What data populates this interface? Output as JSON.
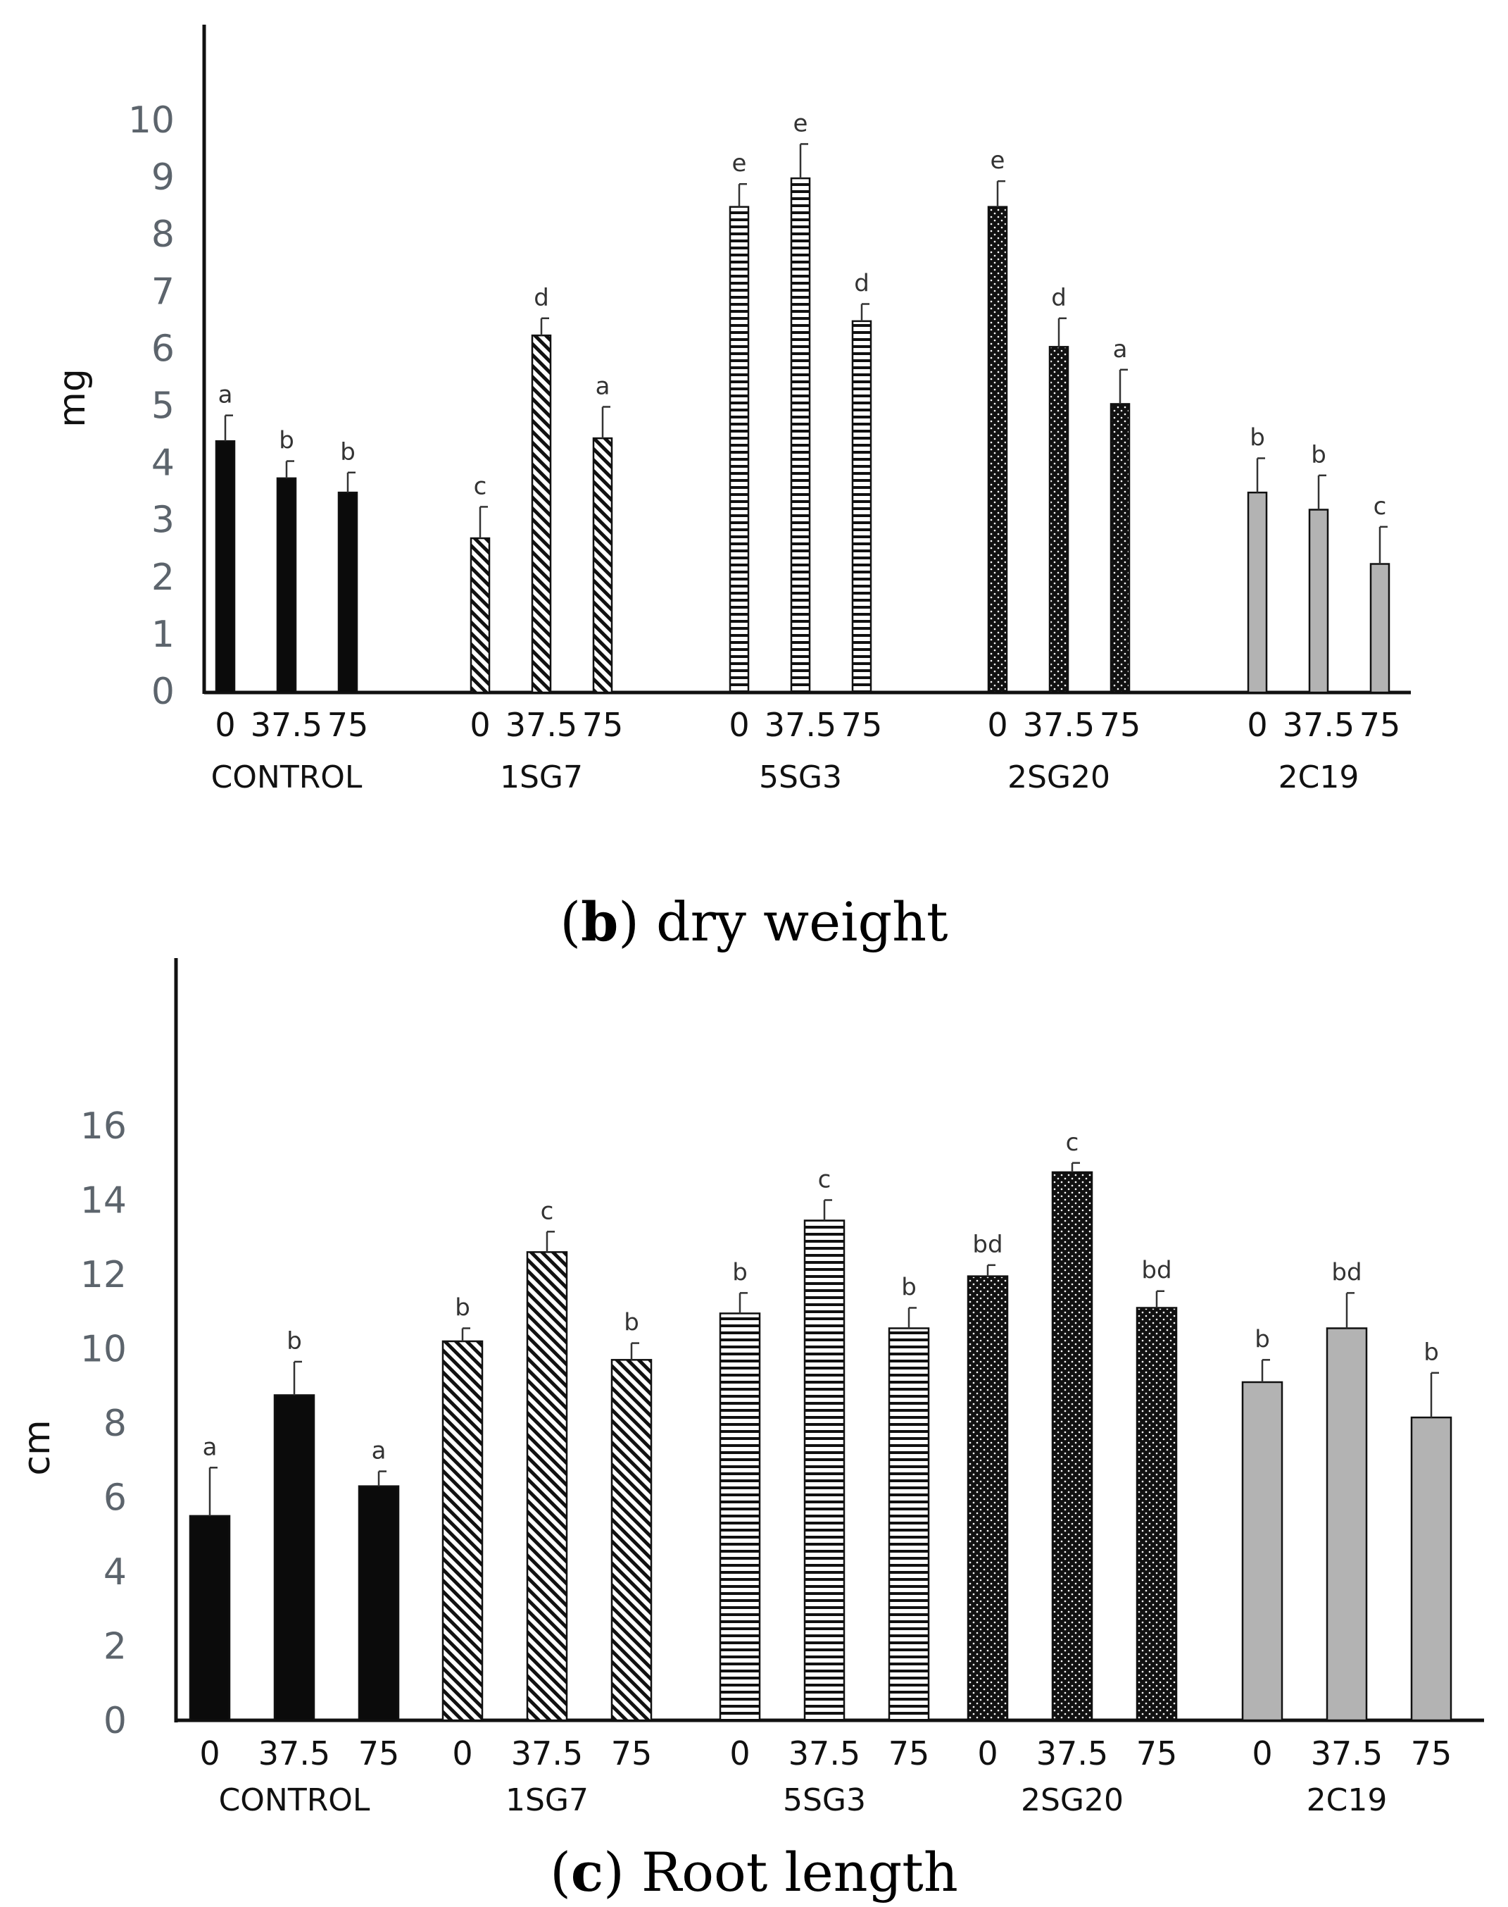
{
  "chart_data": [
    {
      "type": "bar",
      "caption_letter": "b",
      "caption_text": ") dry weight",
      "ylabel": "mg",
      "ylim": [
        0,
        10
      ],
      "yticks": [
        "0",
        "1",
        "2",
        "3",
        "4",
        "5",
        "6",
        "7",
        "8",
        "9",
        "10"
      ],
      "x_tick_labels": [
        "0",
        "37.5",
        "75"
      ],
      "groups": [
        {
          "name": "CONTROL",
          "pattern": "solid",
          "values": [
            4.4,
            3.75,
            3.5
          ],
          "errors": [
            0.45,
            0.3,
            0.35
          ],
          "letters": [
            "a",
            "b",
            "b"
          ]
        },
        {
          "name": "1SG7",
          "pattern": "diagonal",
          "values": [
            2.7,
            6.25,
            4.45
          ],
          "errors": [
            0.55,
            0.3,
            0.55
          ],
          "letters": [
            "c",
            "d",
            "a"
          ]
        },
        {
          "name": "5SG3",
          "pattern": "horizontal",
          "values": [
            8.5,
            9.0,
            6.5
          ],
          "errors": [
            0.4,
            0.6,
            0.3
          ],
          "letters": [
            "e",
            "e",
            "d"
          ]
        },
        {
          "name": "2SG20",
          "pattern": "dotted",
          "values": [
            8.5,
            6.05,
            5.05
          ],
          "errors": [
            0.45,
            0.5,
            0.6
          ],
          "letters": [
            "e",
            "d",
            "a"
          ]
        },
        {
          "name": "2C19",
          "pattern": "gray",
          "values": [
            3.5,
            3.2,
            2.25
          ],
          "errors": [
            0.6,
            0.6,
            0.65
          ],
          "letters": [
            "b",
            "b",
            "c"
          ]
        }
      ]
    },
    {
      "type": "bar",
      "caption_letter": "c",
      "caption_text": ") Root length",
      "ylabel": "cm",
      "ylim": [
        0,
        16
      ],
      "yticks": [
        "0",
        "2",
        "4",
        "6",
        "8",
        "10",
        "12",
        "14",
        "16"
      ],
      "x_tick_labels": [
        "0",
        "37.5",
        "75"
      ],
      "groups": [
        {
          "name": "CONTROL",
          "pattern": "solid",
          "values": [
            5.5,
            8.75,
            6.3
          ],
          "errors": [
            1.3,
            0.9,
            0.4
          ],
          "letters": [
            "a",
            "b",
            "a"
          ]
        },
        {
          "name": "1SG7",
          "pattern": "diagonal",
          "values": [
            10.2,
            12.6,
            9.7
          ],
          "errors": [
            0.35,
            0.55,
            0.45
          ],
          "letters": [
            "b",
            "c",
            "b"
          ]
        },
        {
          "name": "5SG3",
          "pattern": "horizontal",
          "values": [
            10.95,
            13.45,
            10.55
          ],
          "errors": [
            0.55,
            0.55,
            0.55
          ],
          "letters": [
            "b",
            "c",
            "b"
          ]
        },
        {
          "name": "2SG20",
          "pattern": "dotted",
          "values": [
            11.95,
            14.75,
            11.1
          ],
          "errors": [
            0.3,
            0.25,
            0.45
          ],
          "letters": [
            "bd",
            "c",
            "bd"
          ]
        },
        {
          "name": "2C19",
          "pattern": "gray",
          "values": [
            9.1,
            10.55,
            8.15
          ],
          "errors": [
            0.6,
            0.95,
            1.2
          ],
          "letters": [
            "b",
            "bd",
            "b"
          ]
        }
      ]
    }
  ]
}
